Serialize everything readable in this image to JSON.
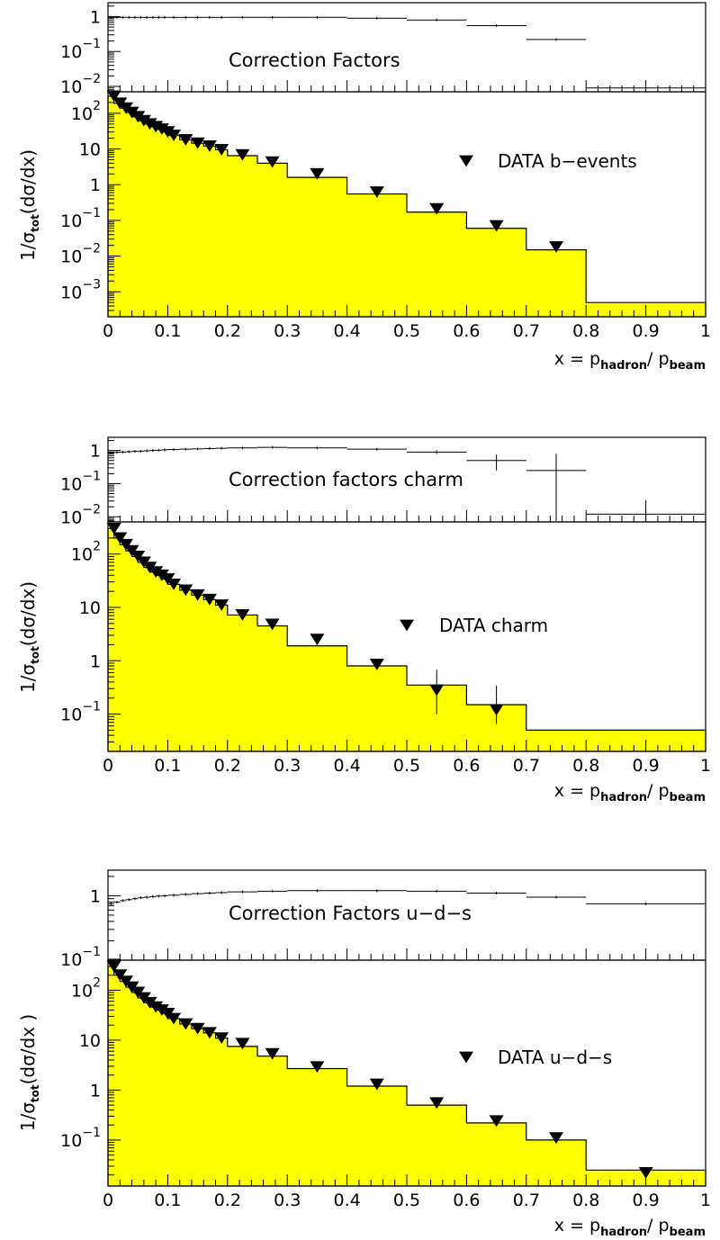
{
  "chart_data": [
    {
      "type": "area",
      "panel": "b-events",
      "xlabel": {
        "prefix": "x  =  p",
        "num_sub": "hadron",
        "sep": "/ p",
        "den_sub": "beam"
      },
      "ylabel": {
        "pre": "1/σ",
        "sub": "tot",
        "post": "(dσ/dx)"
      },
      "x_ticks": [
        "0",
        "0.1",
        "0.2",
        "0.3",
        "0.4",
        "0.5",
        "0.6",
        "0.7",
        "0.8",
        "0.9",
        "1"
      ],
      "xlim": [
        0,
        1
      ],
      "log_y": true,
      "ylim": [
        0.0002,
        400
      ],
      "y_ticks": [
        {
          "value": 100,
          "base": "10",
          "exp": "2"
        },
        {
          "value": 10,
          "base": "10",
          "exp": ""
        },
        {
          "value": 1,
          "base": "1",
          "exp": ""
        },
        {
          "value": 0.1,
          "base": "10",
          "exp": "−1"
        },
        {
          "value": 0.01,
          "base": "10",
          "exp": "−2"
        },
        {
          "value": 0.001,
          "base": "10",
          "exp": "−3"
        }
      ],
      "hist_edges": [
        0,
        0.01,
        0.02,
        0.03,
        0.04,
        0.05,
        0.06,
        0.07,
        0.08,
        0.09,
        0.1,
        0.12,
        0.14,
        0.16,
        0.18,
        0.2,
        0.25,
        0.3,
        0.4,
        0.5,
        0.6,
        0.7,
        0.8,
        1.0
      ],
      "hist_values": [
        300,
        190,
        140,
        105,
        80,
        62,
        50,
        42,
        36,
        30,
        24,
        18,
        14.5,
        12,
        9.5,
        6.5,
        4,
        1.6,
        0.55,
        0.17,
        0.06,
        0.015,
        0.0005
      ],
      "points_x": [
        0.01,
        0.02,
        0.03,
        0.04,
        0.05,
        0.06,
        0.07,
        0.08,
        0.09,
        0.1,
        0.11,
        0.13,
        0.15,
        0.17,
        0.19,
        0.225,
        0.275,
        0.35,
        0.45,
        0.55,
        0.65,
        0.75
      ],
      "points_y": [
        300,
        190,
        140,
        105,
        80,
        62,
        50,
        42,
        36,
        30,
        24,
        18,
        14.5,
        12,
        9.5,
        6.8,
        4.3,
        2.0,
        0.62,
        0.21,
        0.07,
        0.018
      ],
      "point_err_low": [],
      "point_err_high": [],
      "legend": "DATA  b−events",
      "fill_color": "#ffff00",
      "correction": {
        "title": "Correction Factors",
        "ylim": [
          0.007,
          2.5
        ],
        "y_ticks": [
          {
            "value": 1,
            "base": "1",
            "exp": ""
          },
          {
            "value": 0.1,
            "base": "10",
            "exp": "−1"
          },
          {
            "value": 0.01,
            "base": "10",
            "exp": "−2"
          }
        ],
        "edges": [
          0,
          0.01,
          0.02,
          0.03,
          0.04,
          0.05,
          0.06,
          0.07,
          0.08,
          0.09,
          0.1,
          0.12,
          0.14,
          0.16,
          0.18,
          0.2,
          0.25,
          0.3,
          0.4,
          0.5,
          0.6,
          0.7,
          0.8,
          1.0
        ],
        "values": [
          0.95,
          0.95,
          0.95,
          0.95,
          0.95,
          0.95,
          0.95,
          0.95,
          0.95,
          0.95,
          0.95,
          0.95,
          0.95,
          0.95,
          0.95,
          0.95,
          0.95,
          0.95,
          0.9,
          0.8,
          0.55,
          0.22,
          0.009
        ],
        "err": []
      }
    },
    {
      "type": "area",
      "panel": "charm",
      "xlabel": {
        "prefix": "x  =  p",
        "num_sub": "hadron",
        "sep": "/ p",
        "den_sub": "beam"
      },
      "ylabel": {
        "pre": "1/σ",
        "sub": "tot",
        "post": "(dσ/dx)"
      },
      "x_ticks": [
        "0",
        "0.1",
        "0.2",
        "0.3",
        "0.4",
        "0.5",
        "0.6",
        "0.7",
        "0.8",
        "0.9",
        "1"
      ],
      "xlim": [
        0,
        1
      ],
      "log_y": true,
      "ylim": [
        0.02,
        400
      ],
      "y_ticks": [
        {
          "value": 100,
          "base": "10",
          "exp": "2"
        },
        {
          "value": 10,
          "base": "10",
          "exp": ""
        },
        {
          "value": 1,
          "base": "1",
          "exp": ""
        },
        {
          "value": 0.1,
          "base": "10",
          "exp": "−1"
        }
      ],
      "hist_edges": [
        0,
        0.01,
        0.02,
        0.03,
        0.04,
        0.05,
        0.06,
        0.07,
        0.08,
        0.09,
        0.1,
        0.12,
        0.14,
        0.16,
        0.18,
        0.2,
        0.25,
        0.3,
        0.4,
        0.5,
        0.6,
        0.7,
        0.8,
        1.0
      ],
      "hist_values": [
        300,
        200,
        150,
        115,
        90,
        70,
        56,
        46,
        40,
        34,
        27,
        21,
        17,
        14,
        11,
        7.2,
        4.5,
        1.9,
        0.8,
        0.35,
        0.15,
        0.05,
        0.05
      ],
      "points_x": [
        0.01,
        0.02,
        0.03,
        0.04,
        0.05,
        0.06,
        0.07,
        0.08,
        0.09,
        0.1,
        0.11,
        0.13,
        0.15,
        0.17,
        0.19,
        0.225,
        0.275,
        0.35,
        0.45,
        0.55,
        0.65
      ],
      "points_y": [
        300,
        200,
        150,
        115,
        90,
        70,
        56,
        46,
        40,
        34,
        27,
        21,
        17,
        14,
        11,
        7.2,
        4.8,
        2.5,
        0.85,
        0.28,
        0.12
      ],
      "point_err_low": [
        0,
        0,
        0,
        0,
        0,
        0,
        0,
        0,
        0,
        0,
        0,
        0,
        0,
        0,
        0,
        0,
        0,
        0,
        0,
        0.18,
        0.055
      ],
      "point_err_high": [
        0,
        0,
        0,
        0,
        0,
        0,
        0,
        0,
        0,
        0,
        0,
        0,
        0,
        0,
        0,
        0,
        0,
        0,
        0,
        0.4,
        0.22
      ],
      "legend": "DATA   charm",
      "fill_color": "#ffff00",
      "correction": {
        "title": "Correction factors  charm",
        "ylim": [
          0.007,
          2.5
        ],
        "y_ticks": [
          {
            "value": 1,
            "base": "1",
            "exp": ""
          },
          {
            "value": 0.1,
            "base": "10",
            "exp": "−1"
          },
          {
            "value": 0.01,
            "base": "10",
            "exp": "−2"
          }
        ],
        "edges": [
          0,
          0.01,
          0.02,
          0.03,
          0.04,
          0.05,
          0.06,
          0.07,
          0.08,
          0.09,
          0.1,
          0.12,
          0.14,
          0.16,
          0.18,
          0.2,
          0.25,
          0.3,
          0.4,
          0.5,
          0.6,
          0.7,
          0.8,
          1.0
        ],
        "values": [
          0.85,
          0.88,
          0.9,
          0.92,
          0.94,
          0.96,
          0.98,
          1.0,
          1.02,
          1.05,
          1.07,
          1.1,
          1.12,
          1.15,
          1.17,
          1.2,
          1.25,
          1.2,
          1.1,
          0.9,
          0.5,
          0.25,
          0.012
        ],
        "err": [
          0,
          0,
          0,
          0,
          0,
          0,
          0,
          0,
          0,
          0,
          0,
          0,
          0,
          0,
          0,
          0,
          0,
          0,
          0,
          0.12,
          0.25,
          0.55,
          0.02
        ]
      }
    },
    {
      "type": "area",
      "panel": "u-d-s",
      "xlabel": {
        "prefix": "x  =  p",
        "num_sub": "hadron",
        "sep": "/ p",
        "den_sub": "beam"
      },
      "ylabel": {
        "pre": "1/σ",
        "sub": "tot",
        "post": "(dσ/dx )"
      },
      "x_ticks": [
        "0",
        "0.1",
        "0.2",
        "0.3",
        "0.4",
        "0.5",
        "0.6",
        "0.7",
        "0.8",
        "0.9",
        "1"
      ],
      "xlim": [
        0,
        1
      ],
      "log_y": true,
      "ylim": [
        0.012,
        400
      ],
      "y_ticks": [
        {
          "value": 100,
          "base": "10",
          "exp": "2"
        },
        {
          "value": 10,
          "base": "10",
          "exp": ""
        },
        {
          "value": 1,
          "base": "1",
          "exp": ""
        },
        {
          "value": 0.1,
          "base": "10",
          "exp": "−1"
        }
      ],
      "hist_edges": [
        0,
        0.01,
        0.02,
        0.03,
        0.04,
        0.05,
        0.06,
        0.07,
        0.08,
        0.09,
        0.1,
        0.12,
        0.14,
        0.16,
        0.18,
        0.2,
        0.25,
        0.3,
        0.4,
        0.5,
        0.6,
        0.7,
        0.8,
        1.0
      ],
      "hist_values": [
        300,
        200,
        150,
        115,
        90,
        70,
        56,
        46,
        40,
        34,
        27,
        21,
        17,
        14,
        11,
        7.5,
        4.8,
        2.7,
        1.2,
        0.5,
        0.22,
        0.1,
        0.025
      ],
      "points_x": [
        0.01,
        0.02,
        0.03,
        0.04,
        0.05,
        0.06,
        0.07,
        0.08,
        0.09,
        0.1,
        0.11,
        0.13,
        0.15,
        0.17,
        0.19,
        0.225,
        0.275,
        0.35,
        0.45,
        0.55,
        0.65,
        0.75,
        0.9
      ],
      "points_y": [
        300,
        200,
        150,
        115,
        90,
        70,
        56,
        46,
        40,
        34,
        27,
        21,
        17,
        14,
        11,
        8.5,
        5.3,
        2.9,
        1.3,
        0.55,
        0.24,
        0.11,
        0.022
      ],
      "point_err_low": [],
      "point_err_high": [],
      "legend": "DATA u−d−s",
      "fill_color": "#ffff00",
      "correction": {
        "title": "Correction Factors  u−d−s",
        "ylim": [
          0.1,
          2.5
        ],
        "y_ticks": [
          {
            "value": 1,
            "base": "1",
            "exp": ""
          },
          {
            "value": 0.1,
            "base": "10",
            "exp": "−1"
          }
        ],
        "edges": [
          0,
          0.01,
          0.02,
          0.03,
          0.04,
          0.05,
          0.06,
          0.07,
          0.08,
          0.09,
          0.1,
          0.12,
          0.14,
          0.16,
          0.18,
          0.2,
          0.25,
          0.3,
          0.4,
          0.5,
          0.6,
          0.7,
          0.8,
          1.0
        ],
        "values": [
          0.75,
          0.8,
          0.84,
          0.87,
          0.9,
          0.93,
          0.95,
          0.97,
          0.99,
          1.0,
          1.02,
          1.05,
          1.08,
          1.1,
          1.12,
          1.15,
          1.18,
          1.2,
          1.2,
          1.18,
          1.1,
          0.95,
          0.75
        ],
        "err": []
      }
    }
  ]
}
